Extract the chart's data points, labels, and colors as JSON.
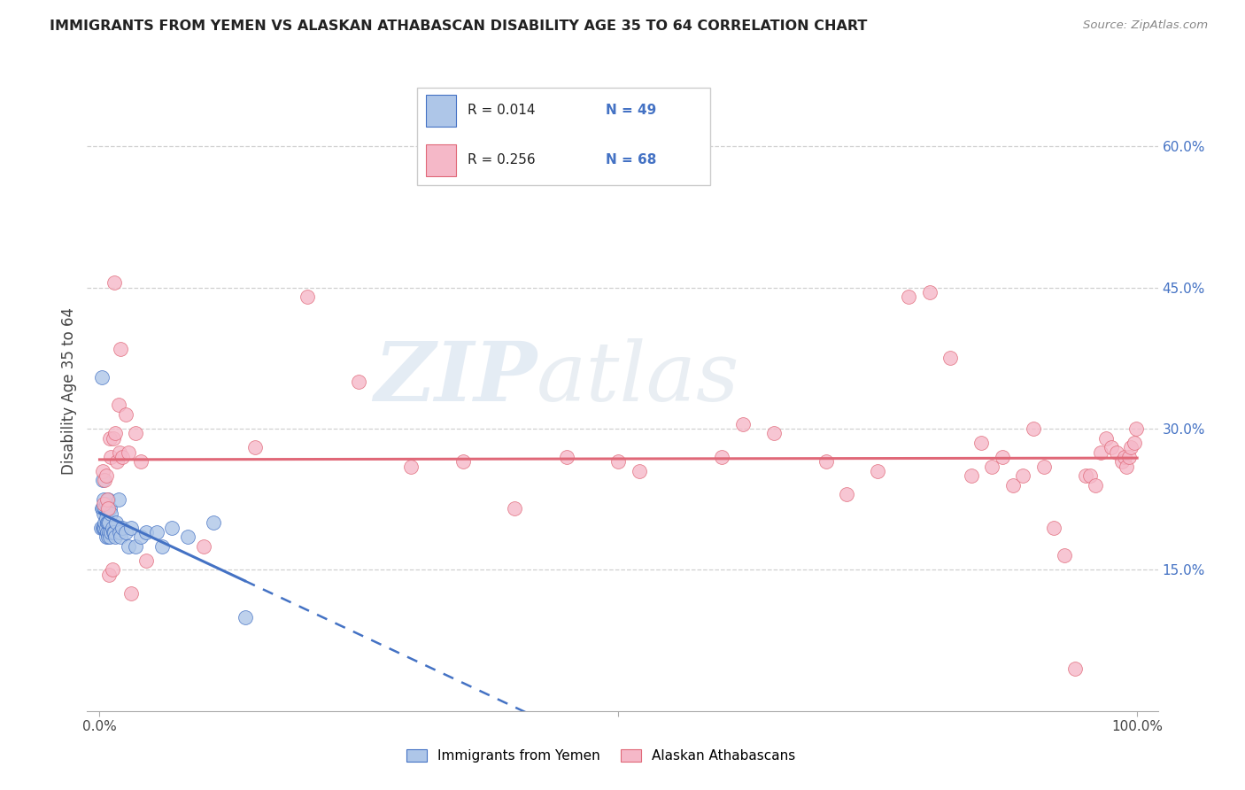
{
  "title": "IMMIGRANTS FROM YEMEN VS ALASKAN ATHABASCAN DISABILITY AGE 35 TO 64 CORRELATION CHART",
  "source": "Source: ZipAtlas.com",
  "ylabel": "Disability Age 35 to 64",
  "ylabel_right_ticks": [
    "15.0%",
    "30.0%",
    "45.0%",
    "60.0%"
  ],
  "ylabel_right_vals": [
    0.15,
    0.3,
    0.45,
    0.6
  ],
  "legend_label1": "Immigrants from Yemen",
  "legend_label2": "Alaskan Athabascans",
  "R1": "0.014",
  "N1": "49",
  "R2": "0.256",
  "N2": "68",
  "color_blue": "#aec6e8",
  "color_pink": "#f5b8c8",
  "line_blue": "#4472C4",
  "line_pink": "#E06878",
  "watermark_zip": "ZIP",
  "watermark_atlas": "atlas",
  "blue_x": [
    0.001,
    0.002,
    0.002,
    0.003,
    0.003,
    0.003,
    0.004,
    0.004,
    0.004,
    0.005,
    0.005,
    0.005,
    0.006,
    0.006,
    0.006,
    0.006,
    0.007,
    0.007,
    0.007,
    0.008,
    0.008,
    0.008,
    0.009,
    0.009,
    0.01,
    0.01,
    0.011,
    0.011,
    0.012,
    0.013,
    0.014,
    0.015,
    0.016,
    0.018,
    0.019,
    0.02,
    0.022,
    0.025,
    0.028,
    0.03,
    0.035,
    0.04,
    0.045,
    0.055,
    0.06,
    0.07,
    0.085,
    0.11,
    0.14
  ],
  "blue_y": [
    0.195,
    0.215,
    0.355,
    0.195,
    0.215,
    0.245,
    0.195,
    0.21,
    0.225,
    0.195,
    0.2,
    0.215,
    0.185,
    0.195,
    0.205,
    0.22,
    0.19,
    0.2,
    0.215,
    0.185,
    0.2,
    0.225,
    0.19,
    0.2,
    0.185,
    0.215,
    0.19,
    0.21,
    0.195,
    0.19,
    0.19,
    0.185,
    0.2,
    0.225,
    0.19,
    0.185,
    0.195,
    0.19,
    0.175,
    0.195,
    0.175,
    0.185,
    0.19,
    0.19,
    0.175,
    0.195,
    0.185,
    0.2,
    0.1
  ],
  "pink_x": [
    0.003,
    0.004,
    0.005,
    0.006,
    0.007,
    0.008,
    0.009,
    0.01,
    0.011,
    0.012,
    0.013,
    0.014,
    0.015,
    0.017,
    0.018,
    0.019,
    0.02,
    0.022,
    0.025,
    0.028,
    0.03,
    0.035,
    0.04,
    0.045,
    0.1,
    0.15,
    0.2,
    0.25,
    0.3,
    0.35,
    0.4,
    0.45,
    0.5,
    0.52,
    0.6,
    0.62,
    0.65,
    0.7,
    0.72,
    0.75,
    0.78,
    0.8,
    0.82,
    0.84,
    0.85,
    0.86,
    0.87,
    0.88,
    0.89,
    0.9,
    0.91,
    0.92,
    0.93,
    0.94,
    0.95,
    0.955,
    0.96,
    0.965,
    0.97,
    0.975,
    0.98,
    0.985,
    0.988,
    0.99,
    0.992,
    0.994,
    0.997,
    0.999
  ],
  "pink_y": [
    0.255,
    0.22,
    0.245,
    0.25,
    0.225,
    0.215,
    0.145,
    0.29,
    0.27,
    0.15,
    0.29,
    0.455,
    0.295,
    0.265,
    0.325,
    0.275,
    0.385,
    0.27,
    0.315,
    0.275,
    0.125,
    0.295,
    0.265,
    0.16,
    0.175,
    0.28,
    0.44,
    0.35,
    0.26,
    0.265,
    0.215,
    0.27,
    0.265,
    0.255,
    0.27,
    0.305,
    0.295,
    0.265,
    0.23,
    0.255,
    0.44,
    0.445,
    0.375,
    0.25,
    0.285,
    0.26,
    0.27,
    0.24,
    0.25,
    0.3,
    0.26,
    0.195,
    0.165,
    0.045,
    0.25,
    0.25,
    0.24,
    0.275,
    0.29,
    0.28,
    0.275,
    0.265,
    0.27,
    0.26,
    0.27,
    0.28,
    0.285,
    0.3
  ]
}
